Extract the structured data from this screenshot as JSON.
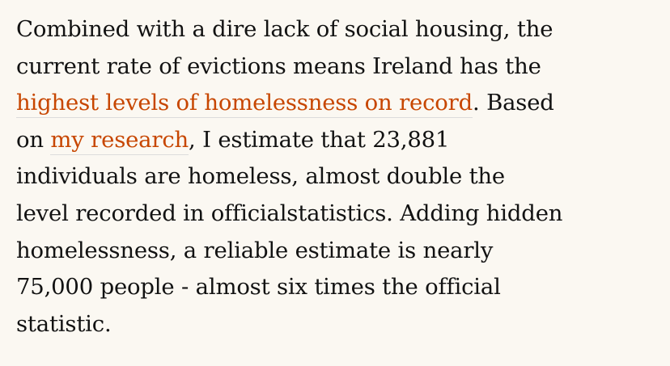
{
  "paragraph": {
    "lines": [
      [
        {
          "text": "Combined with a dire lack of social housing, the",
          "link": false
        }
      ],
      [
        {
          "text": "current rate of evictions means Ireland has the",
          "link": false
        }
      ],
      [
        {
          "text": "highest levels of homelessness on record",
          "link": true
        },
        {
          "text": ". Based",
          "link": false
        }
      ],
      [
        {
          "text": "on ",
          "link": false
        },
        {
          "text": "my research",
          "link": true
        },
        {
          "text": ", I estimate that 23,881",
          "link": false
        }
      ],
      [
        {
          "text": "individuals are homeless, almost double the",
          "link": false
        }
      ],
      [
        {
          "text": "level recorded in officialstatistics. Adding hidden",
          "link": false
        }
      ],
      [
        {
          "text": "homelessness, a reliable estimate is nearly",
          "link": false
        }
      ],
      [
        {
          "text": "75,000 people - almost six times the official",
          "link": false
        }
      ],
      [
        {
          "text": "statistic.",
          "link": false
        }
      ]
    ]
  }
}
